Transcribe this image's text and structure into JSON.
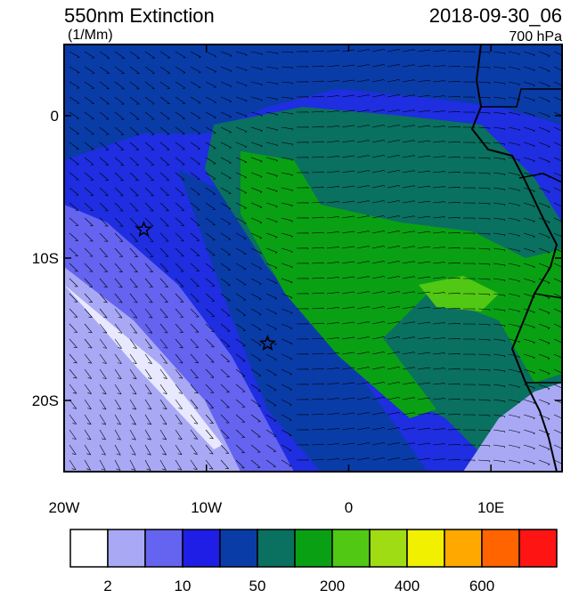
{
  "title": "550nm Extinction",
  "units": "(1/Mm)",
  "date": "2018-09-30_06",
  "level": "700 hPa",
  "map": {
    "xlim": [
      -20,
      15
    ],
    "ylim": [
      -25,
      5
    ],
    "xticks": [
      {
        "value": -20,
        "label": "20W"
      },
      {
        "value": -10,
        "label": "10W"
      },
      0,
      {
        "value": 10,
        "label": "10E"
      }
    ],
    "yticks": [
      0,
      {
        "value": -10,
        "label": "10S"
      },
      {
        "value": -20,
        "label": "20S"
      }
    ],
    "stars": [
      {
        "lon": -14.4,
        "lat": -8
      },
      {
        "lon": -5.7,
        "lat": -16
      }
    ]
  },
  "colorbar": {
    "colors": [
      "#ffffff",
      "#a8a8f5",
      "#6464f0",
      "#1e1ee6",
      "#0a3ca8",
      "#0a7060",
      "#0aa014",
      "#50c814",
      "#a0dc14",
      "#f0f000",
      "#ffa800",
      "#ff6400",
      "#ff1414"
    ],
    "labels": [
      2,
      10,
      50,
      200,
      400,
      600
    ]
  }
}
